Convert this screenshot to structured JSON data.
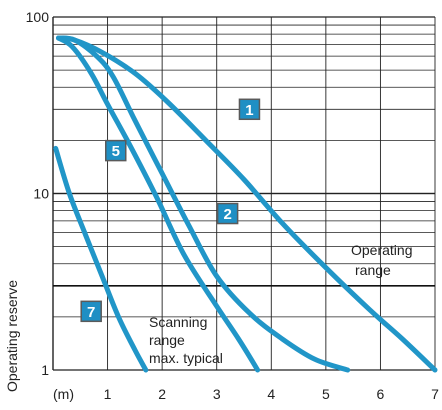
{
  "chart_data": {
    "type": "line",
    "title": "",
    "xlabel": "",
    "ylabel": "Operating reserve",
    "x_unit_label": "(m)",
    "x_ticks": [
      1,
      2,
      3,
      4,
      5,
      6,
      7
    ],
    "x_tick_labels": [
      "1",
      "2",
      "3",
      "4",
      "5",
      "6",
      "7"
    ],
    "xlim": [
      0,
      7
    ],
    "y_scale": "log",
    "ylim": [
      1,
      100
    ],
    "y_ticks": [
      1,
      10,
      100
    ],
    "y_tick_labels": [
      "1",
      "10",
      "100"
    ],
    "grid": true,
    "line_color": "#2196c8",
    "threshold_y": 3,
    "annotations": {
      "operating_range": [
        "Operating",
        "range"
      ],
      "scanning_range": [
        "Scanning",
        "range",
        "max. typical"
      ]
    },
    "series": [
      {
        "name": "1",
        "x": [
          0.1,
          0.4,
          0.9,
          1.5,
          2.1,
          2.8,
          3.5,
          4.2,
          5.0,
          5.8,
          6.4,
          7.0
        ],
        "y": [
          76,
          74,
          63,
          48,
          33,
          20,
          12,
          6.8,
          3.8,
          2.2,
          1.5,
          1.0
        ]
      },
      {
        "name": "2",
        "x": [
          0.1,
          0.4,
          0.8,
          1.1,
          1.5,
          2.0,
          2.5,
          3.0,
          3.6,
          4.2,
          4.8,
          5.4
        ],
        "y": [
          76,
          74,
          60,
          46,
          26,
          13,
          6.5,
          3.4,
          2.1,
          1.5,
          1.15,
          1.0
        ]
      },
      {
        "name": "5",
        "x": [
          0.1,
          0.35,
          0.7,
          1.0,
          1.4,
          1.9,
          2.4,
          3.0,
          3.4,
          3.75
        ],
        "y": [
          76,
          68,
          48,
          32,
          19,
          9.5,
          4.5,
          2.3,
          1.5,
          1.0
        ]
      },
      {
        "name": "7",
        "x": [
          0.05,
          0.3,
          0.6,
          0.9,
          1.2,
          1.5,
          1.7
        ],
        "y": [
          18,
          10,
          5.8,
          3.4,
          2.0,
          1.3,
          1.0
        ]
      }
    ],
    "badges": [
      {
        "label": "1",
        "x": 3.6,
        "y": 30
      },
      {
        "label": "2",
        "x": 3.2,
        "y": 7.7
      },
      {
        "label": "5",
        "x": 1.15,
        "y": 17.5
      },
      {
        "label": "7",
        "x": 0.7,
        "y": 2.15
      }
    ]
  }
}
